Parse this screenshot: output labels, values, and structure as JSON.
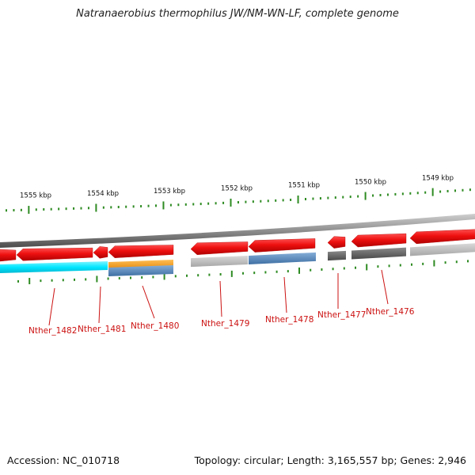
{
  "title": "Natranaerobius thermophilus JW/NM-WN-LF, complete genome",
  "footer": {
    "accession": "Accession: NC_010718",
    "summary": "Topology: circular; Length: 3,165,557 bp; Genes: 2,946"
  },
  "ruler": {
    "labels": [
      "1555 kbp",
      "1554 kbp",
      "1553 kbp",
      "1552 kbp",
      "1551 kbp",
      "1550 kbp",
      "1549 kbp"
    ],
    "tick_color": "#2e8b22"
  },
  "genes": [
    {
      "label": "Nther_1482",
      "color": "#00e6ff"
    },
    {
      "label": "Nther_1481",
      "color": "#00e6ff"
    },
    {
      "label": "Nther_1480",
      "color": "#f39200"
    },
    {
      "label": "Nther_1479",
      "color": "#b4b4b4"
    },
    {
      "label": "Nther_1478",
      "color": "#4a80b8"
    },
    {
      "label": "Nther_1477",
      "color": "#5f5f5f"
    },
    {
      "label": "Nther_1476",
      "color": "#5f5f5f"
    }
  ],
  "colors": {
    "cds_strand": "#e8121a",
    "backbone": "#8e8e8e",
    "label": "#cc1111",
    "secondary": "#4a7fb5"
  }
}
